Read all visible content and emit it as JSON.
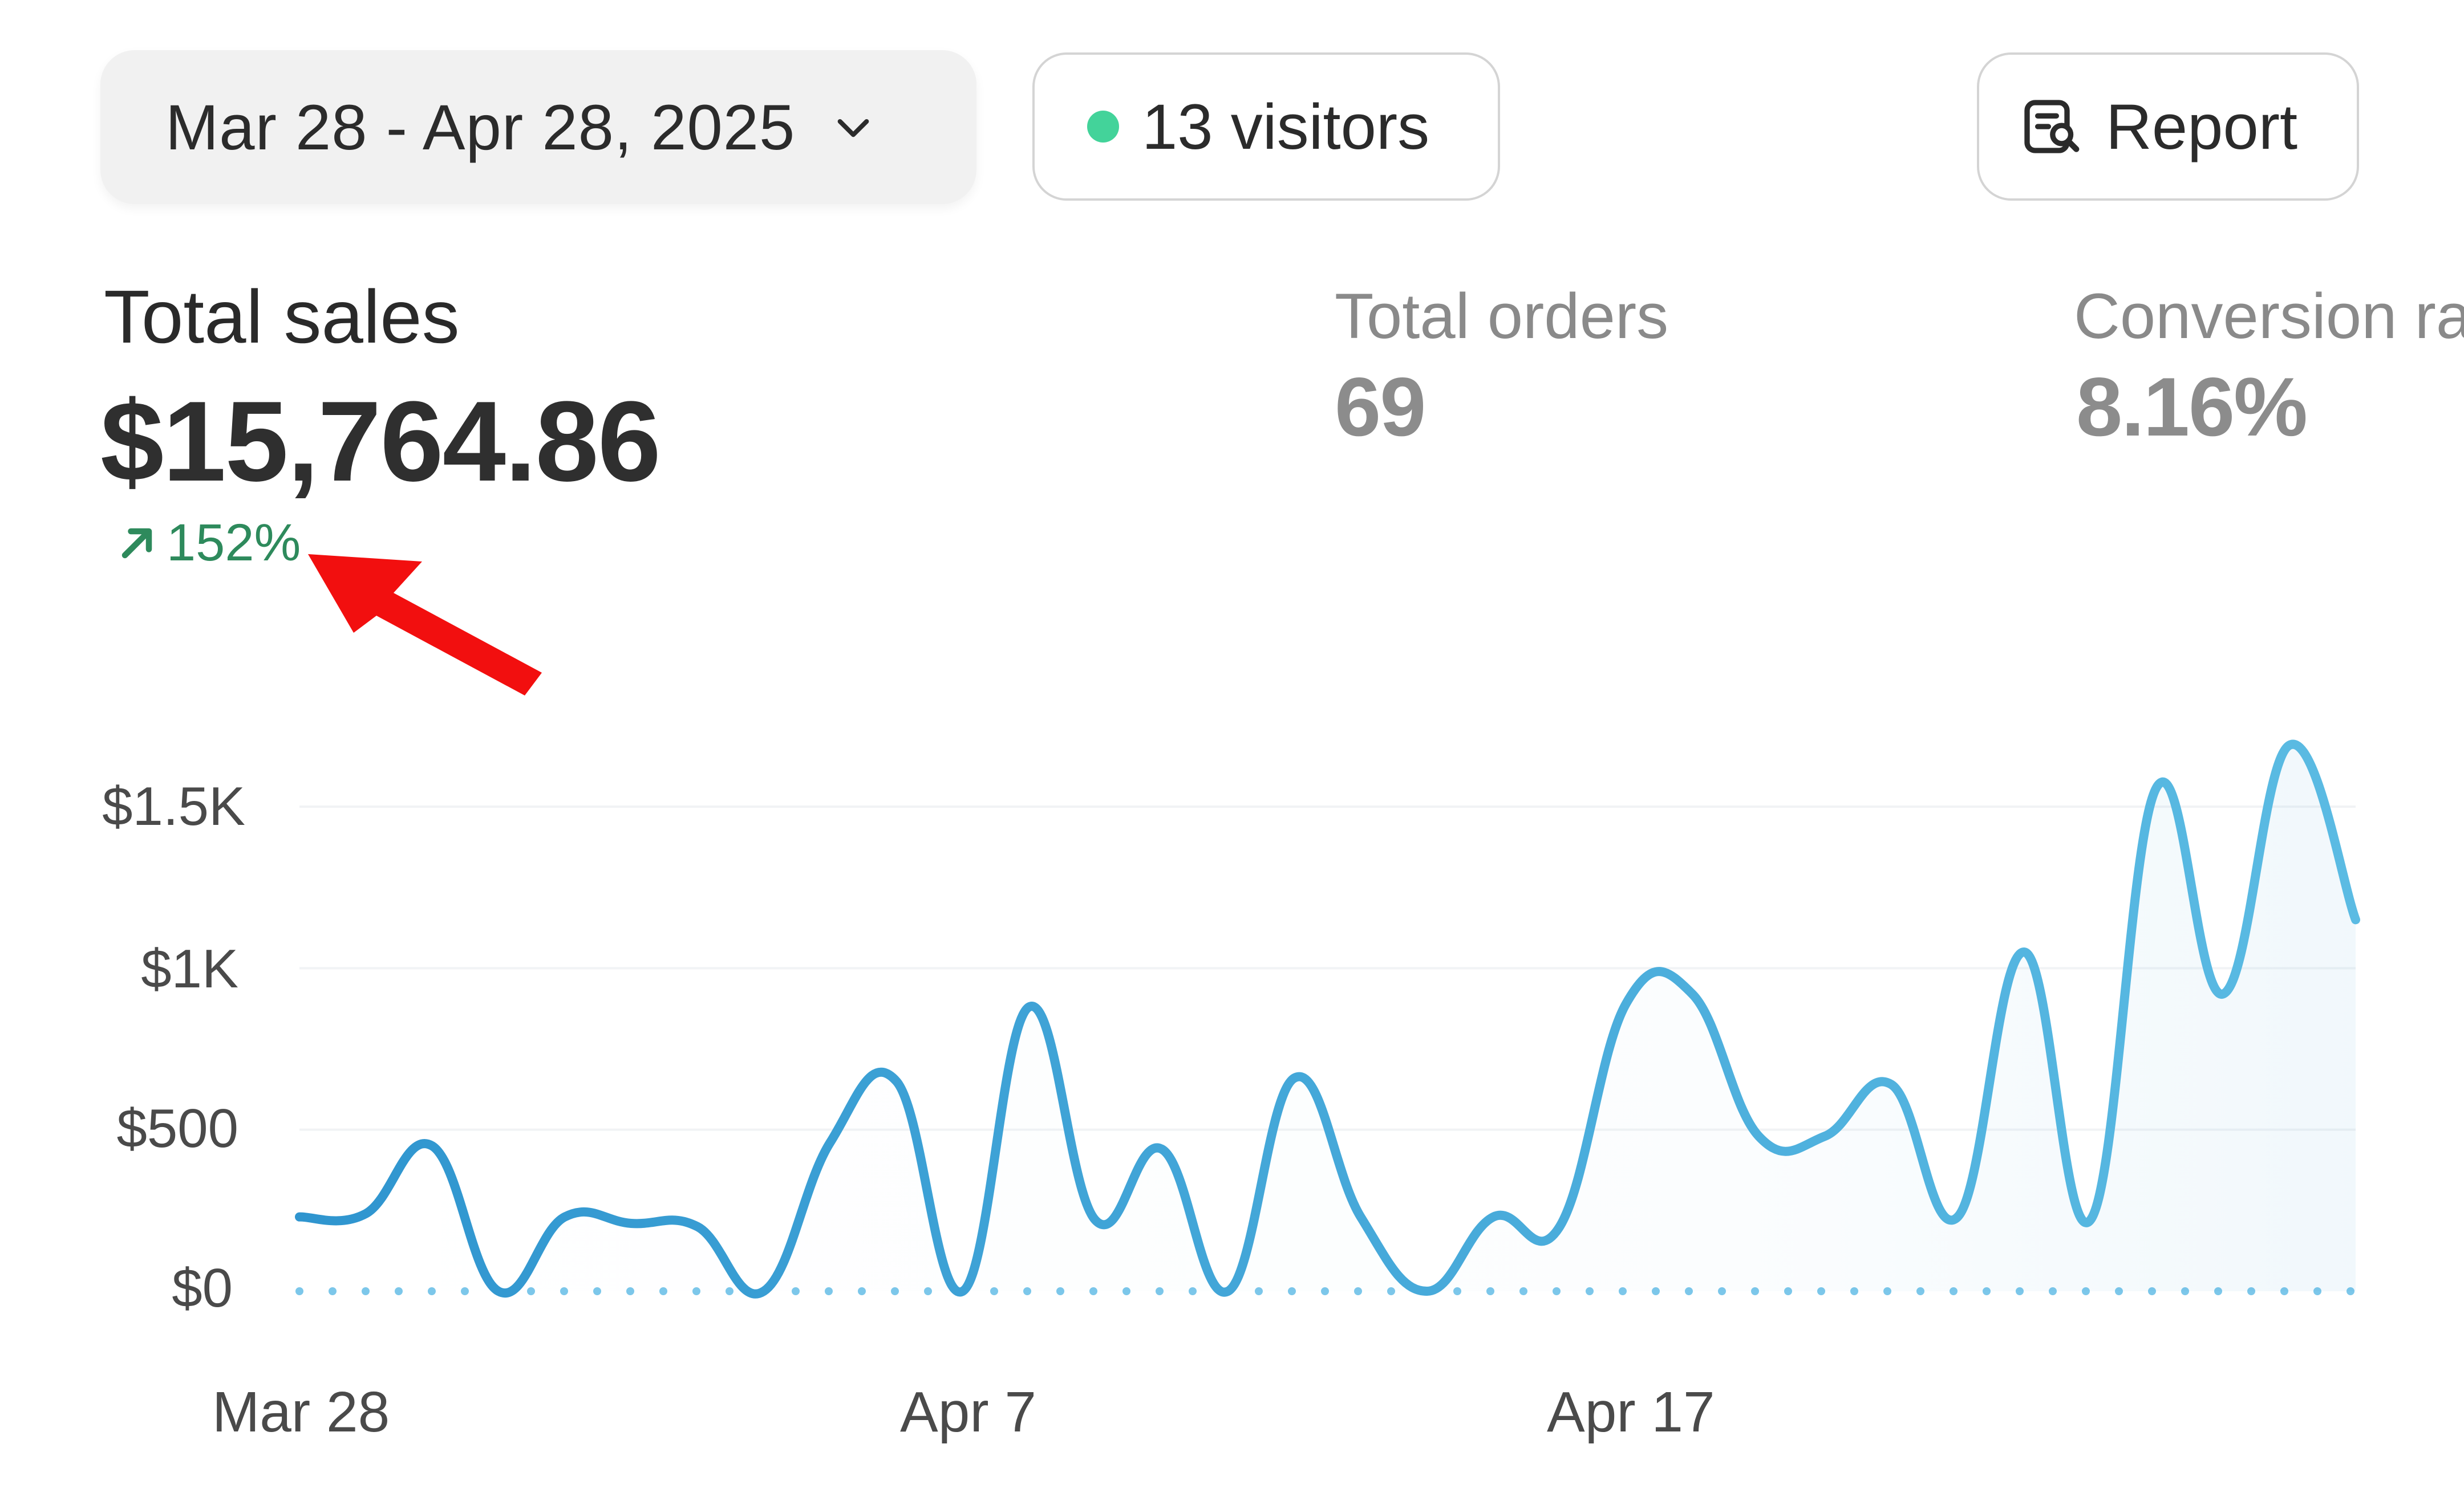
{
  "toolbar": {
    "date_range": "Mar 28 - Apr 28, 2025",
    "visitors_label": "13 visitors",
    "report_label": "Report",
    "colors": {
      "live_dot": "#43d39a"
    }
  },
  "metrics": {
    "total_sales": {
      "title": "Total sales",
      "value": "$15,764.86",
      "change": "152%"
    },
    "total_orders": {
      "title": "Total orders",
      "value": "69"
    },
    "conversion_rate": {
      "title": "Conversion ra",
      "value": "8.16%"
    }
  },
  "chart_data": {
    "type": "line",
    "y_ticks": [
      "$1.5K",
      "$1K",
      "$500",
      "$0"
    ],
    "x_ticks": [
      "Mar 28",
      "Apr 7",
      "Apr 17"
    ],
    "ylim": [
      0,
      1500
    ],
    "grid": true,
    "colors": {
      "current": "#3a9bd1",
      "comparison": "#7cc7ea"
    },
    "series": [
      {
        "values": [
          230,
          240,
          450,
          0,
          230,
          210,
          200,
          0,
          460,
          650,
          0,
          880,
          220,
          440,
          0,
          660,
          230,
          0,
          230,
          200,
          890,
          920,
          480,
          480,
          640,
          230,
          1050,
          220,
          1560,
          920,
          1690,
          1150
        ]
      }
    ],
    "comparison_values": [
      0,
      0,
      0,
      0,
      0,
      0,
      0,
      0,
      0,
      0,
      0,
      0,
      0,
      0,
      0,
      0,
      0,
      0,
      0,
      0,
      0,
      0,
      0,
      0,
      0,
      0,
      0,
      0,
      0,
      0,
      0,
      0
    ]
  }
}
